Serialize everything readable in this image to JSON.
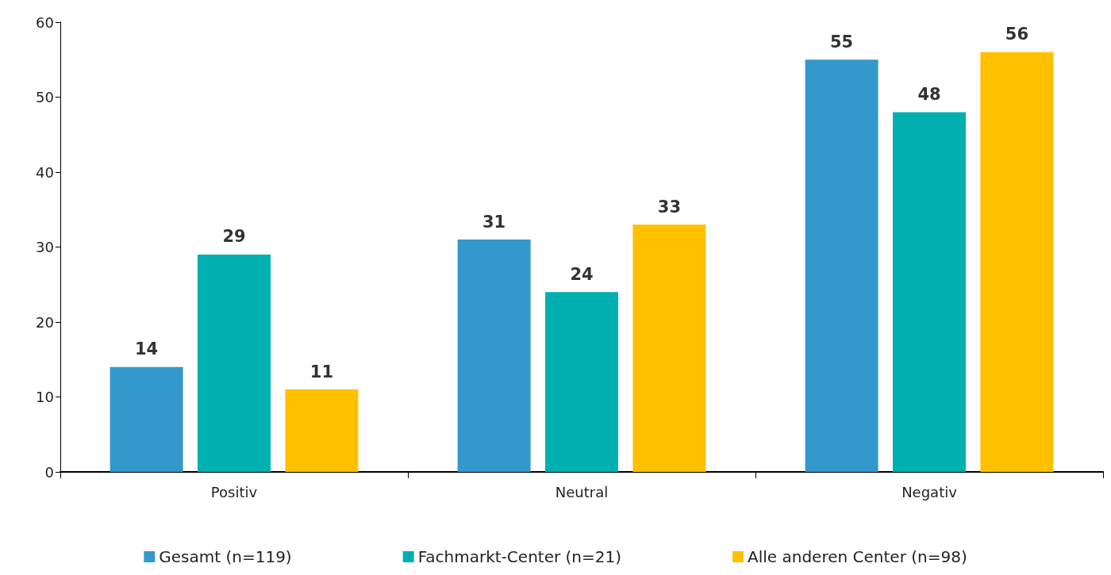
{
  "chart_data": {
    "type": "bar",
    "categories": [
      "Positiv",
      "Neutral",
      "Negativ"
    ],
    "series": [
      {
        "name": "Gesamt (n=119)",
        "color": "#3399cc",
        "values": [
          14,
          31,
          55
        ]
      },
      {
        "name": "Fachmarkt-Center (n=21)",
        "color": "#00b0b0",
        "values": [
          29,
          24,
          48
        ]
      },
      {
        "name": "Alle anderen Center (n=98)",
        "color": "#ffc000",
        "values": [
          11,
          33,
          56
        ]
      }
    ],
    "ylim": [
      0,
      60
    ],
    "yticks": [
      0,
      10,
      20,
      30,
      40,
      50,
      60
    ],
    "grid": false,
    "legend": "bottom",
    "data_labels": true
  }
}
